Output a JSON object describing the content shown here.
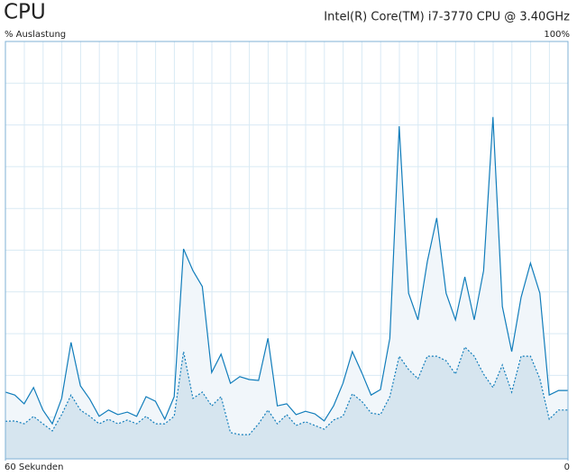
{
  "chart_data": {
    "type": "area",
    "title": "CPU",
    "subtitle": "Intel(R) Core(TM) i7-3770 CPU @ 3.40GHz",
    "y_label": "% Auslastung",
    "x": [
      60,
      59,
      58,
      57,
      56,
      55,
      54,
      53,
      52,
      51,
      50,
      49,
      48,
      47,
      46,
      45,
      44,
      43,
      42,
      41,
      40,
      39,
      38,
      37,
      36,
      35,
      34,
      33,
      32,
      31,
      30,
      29,
      28,
      27,
      26,
      25,
      24,
      23,
      22,
      21,
      20,
      19,
      18,
      17,
      16,
      15,
      14,
      13,
      12,
      11,
      10,
      9,
      8,
      7,
      6,
      5,
      4,
      3,
      2,
      1,
      0
    ],
    "xlim": [
      60,
      0
    ],
    "xticks": [
      {
        "value": 60,
        "label": "60 Sekunden"
      },
      {
        "value": 0,
        "label": "0"
      }
    ],
    "ylim": [
      0,
      100
    ],
    "yticks": [
      {
        "value": 100,
        "label": "100%"
      }
    ],
    "grid": true,
    "series": [
      {
        "color": "#117dbb",
        "fill": "#f1f6fa",
        "line_style": "solid",
        "values": [
          16,
          15.3,
          13.2,
          17.1,
          11.7,
          8.4,
          14.5,
          27.9,
          17.5,
          14.3,
          10.2,
          11.7,
          10.6,
          11.2,
          10.2,
          14.9,
          13.8,
          9.5,
          14.9,
          50.3,
          45.1,
          41.3,
          20.7,
          25.1,
          18.1,
          19.7,
          19.0,
          18.8,
          28.9,
          12.7,
          13.2,
          10.6,
          11.4,
          10.8,
          9.1,
          12.7,
          18.1,
          25.7,
          20.7,
          15.3,
          16.6,
          28.9,
          79.7,
          39.7,
          33.3,
          47.3,
          57.7,
          39.7,
          33.3,
          43.6,
          33.3,
          45.1,
          81.9,
          36.5,
          25.7,
          38.7,
          46.9,
          39.7,
          15.3,
          16.4,
          16.4
        ]
      },
      {
        "color": "#117dbb",
        "fill": "#d6e5ef",
        "line_style": "dotted",
        "values": [
          9,
          9.1,
          8.4,
          10.2,
          8.4,
          6.7,
          10.6,
          15.3,
          11.7,
          10.2,
          8.4,
          9.5,
          8.4,
          9.3,
          8.4,
          10.2,
          8.4,
          8.4,
          10.2,
          25.7,
          14.5,
          16.0,
          12.7,
          14.9,
          6.3,
          5.8,
          5.8,
          8.4,
          11.7,
          8.4,
          10.6,
          8.0,
          8.9,
          8.0,
          7.1,
          9.3,
          10.2,
          15.6,
          13.8,
          11.0,
          10.6,
          14.9,
          24.6,
          21.4,
          19.2,
          24.6,
          24.6,
          23.5,
          20.3,
          26.8,
          24.6,
          20.3,
          17.1,
          22.5,
          16.0,
          24.6,
          24.6,
          19.2,
          9.5,
          11.7,
          11.7
        ]
      }
    ]
  }
}
